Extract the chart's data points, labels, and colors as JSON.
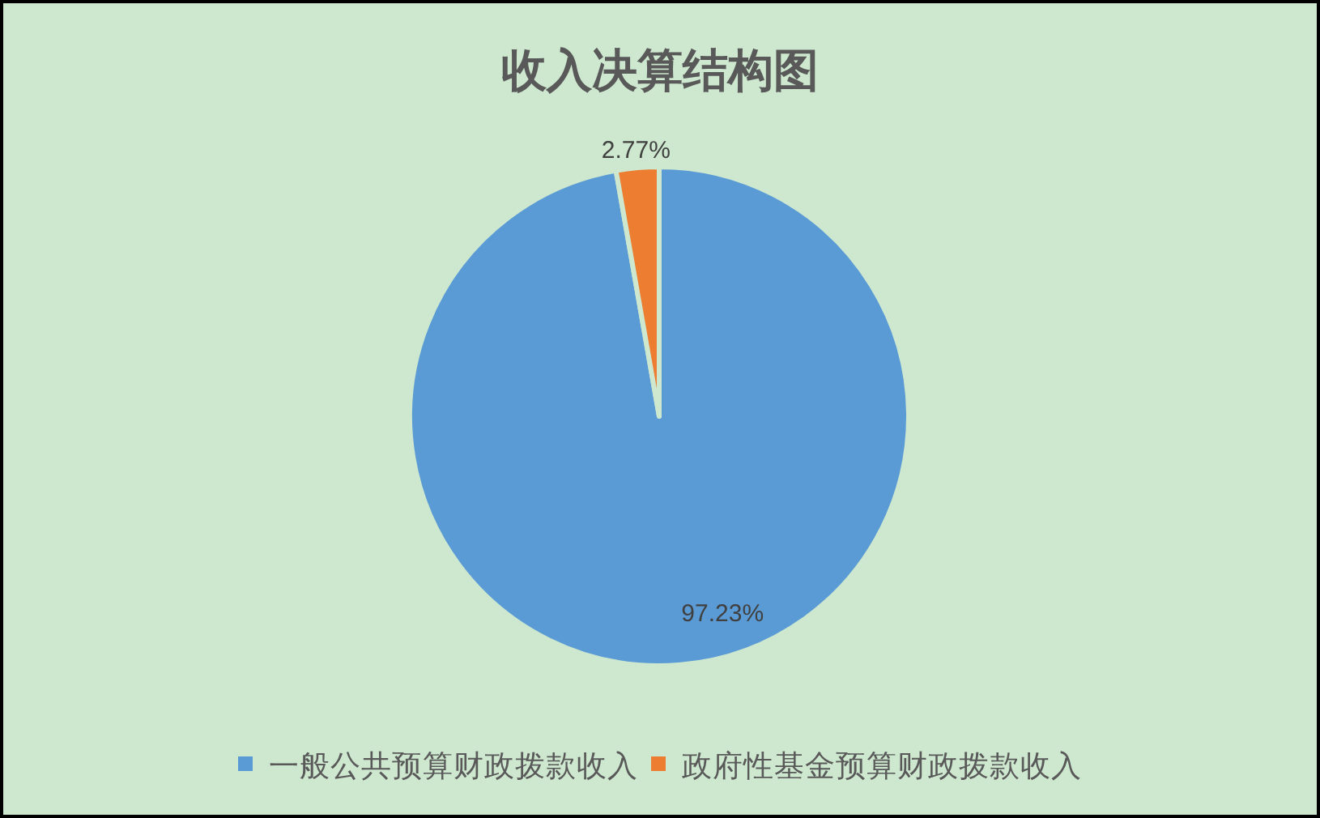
{
  "chart_data": {
    "type": "pie",
    "title": "收入决算结构图",
    "categories": [
      "一般公共预算财政拨款收入",
      "政府性基金预算财政拨款收入"
    ],
    "values": [
      97.23,
      2.77
    ],
    "colors": [
      "#5b9bd5",
      "#ed7d31"
    ],
    "value_labels": [
      "97.23%",
      "2.77%"
    ],
    "legend": "bottom"
  }
}
